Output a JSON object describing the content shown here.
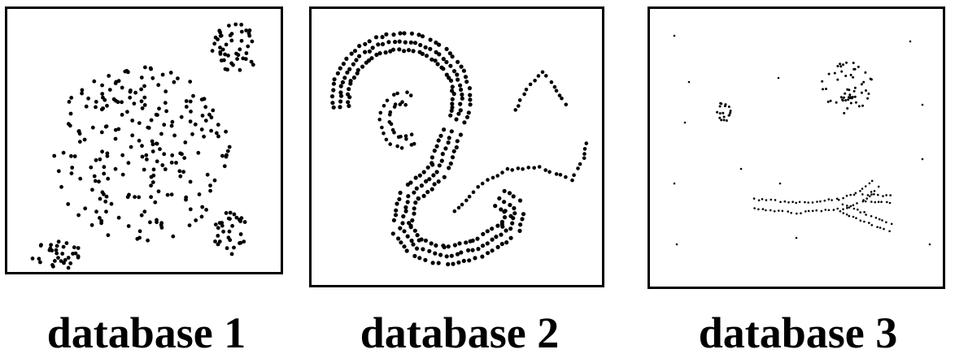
{
  "captions": {
    "db1": "database 1",
    "db2": "database 2",
    "db3": "database 3"
  },
  "colors": {
    "dot": "#000000",
    "frame": "#000000",
    "background": "#ffffff"
  }
}
